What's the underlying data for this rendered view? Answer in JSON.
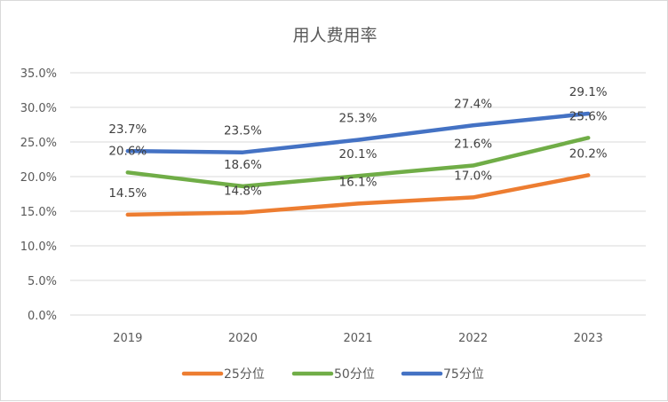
{
  "chart_data": {
    "type": "line",
    "title": "用人费用率",
    "categories": [
      "2019",
      "2020",
      "2021",
      "2022",
      "2023"
    ],
    "ylim": [
      0,
      35
    ],
    "y_ticks": [
      "0.0%",
      "5.0%",
      "10.0%",
      "15.0%",
      "20.0%",
      "25.0%",
      "30.0%",
      "35.0%"
    ],
    "y_tick_values": [
      0,
      5,
      10,
      15,
      20,
      25,
      30,
      35
    ],
    "grid": true,
    "legend_position": "bottom",
    "series": [
      {
        "name": "25分位",
        "color": "#ED7D31",
        "values": [
          14.5,
          14.8,
          16.1,
          17.0,
          20.2
        ],
        "labels": [
          "14.5%",
          "14.8%",
          "16.1%",
          "17.0%",
          "20.2%"
        ]
      },
      {
        "name": "50分位",
        "color": "#70AD47",
        "values": [
          20.6,
          18.6,
          20.1,
          21.6,
          25.6
        ],
        "labels": [
          "20.6%",
          "18.6%",
          "20.1%",
          "21.6%",
          "25.6%"
        ]
      },
      {
        "name": "75分位",
        "color": "#4472C4",
        "values": [
          23.7,
          23.5,
          25.3,
          27.4,
          29.1
        ],
        "labels": [
          "23.7%",
          "23.5%",
          "25.3%",
          "27.4%",
          "29.1%"
        ]
      }
    ]
  }
}
